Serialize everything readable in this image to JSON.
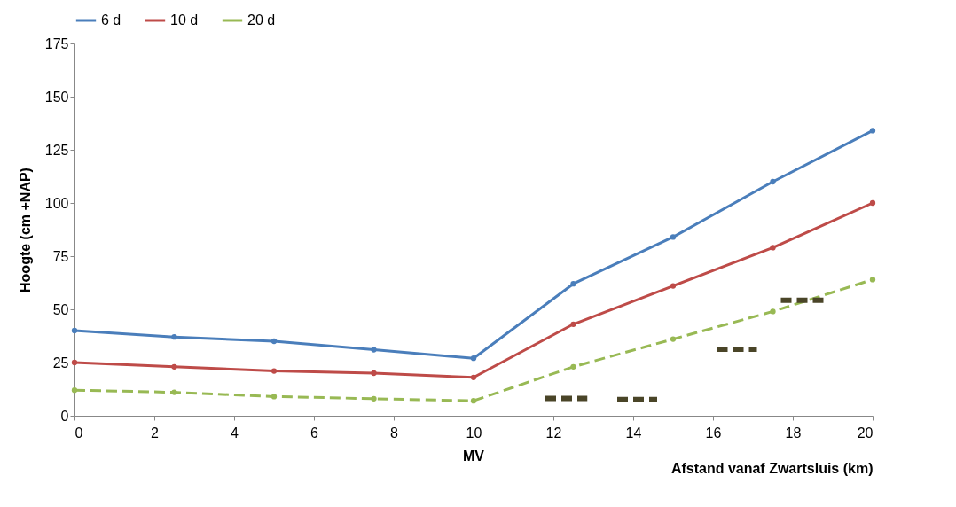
{
  "chart_data": {
    "type": "line",
    "xlabel": "Afstand vanaf Zwartsluis  (km)",
    "ylabel": "Hoogte (cm +NAP)",
    "x": [
      0,
      2.5,
      5,
      7.5,
      10,
      12.5,
      15,
      17.5,
      20
    ],
    "series": [
      {
        "name": "6 d",
        "color": "#4a7ebb",
        "values": [
          40,
          37,
          35,
          31,
          27,
          62,
          84,
          110,
          134
        ]
      },
      {
        "name": "10 d",
        "color": "#be4b48",
        "values": [
          25,
          23,
          21,
          20,
          18,
          43,
          61,
          79,
          100
        ]
      },
      {
        "name": "20 d",
        "color": "#98b954",
        "line_style": "dashed",
        "values": [
          12,
          11,
          9,
          8,
          7,
          23,
          36,
          49,
          64
        ]
      },
      {
        "color": "#4a4528",
        "line_style": "dashed",
        "marker": "none",
        "x": [
          11.8,
          12.85,
          13.2,
          13.6,
          14.6,
          15.3,
          16.1,
          17.1,
          17.4,
          17.7,
          18.8
        ],
        "values": [
          8.1,
          8.1,
          null,
          7.6,
          7.6,
          null,
          31.2,
          31.2,
          null,
          54.3,
          54.3
        ]
      }
    ],
    "xlim": [
      0,
      20
    ],
    "xticks": [
      0,
      2,
      4,
      6,
      8,
      10,
      12,
      14,
      16,
      18,
      20
    ],
    "ylim": [
      0,
      175
    ],
    "yticks": [
      0,
      25,
      50,
      75,
      100,
      125,
      150,
      175
    ],
    "grid": false,
    "legend": "top",
    "marker": "circle",
    "annotations": [
      "MV"
    ]
  }
}
